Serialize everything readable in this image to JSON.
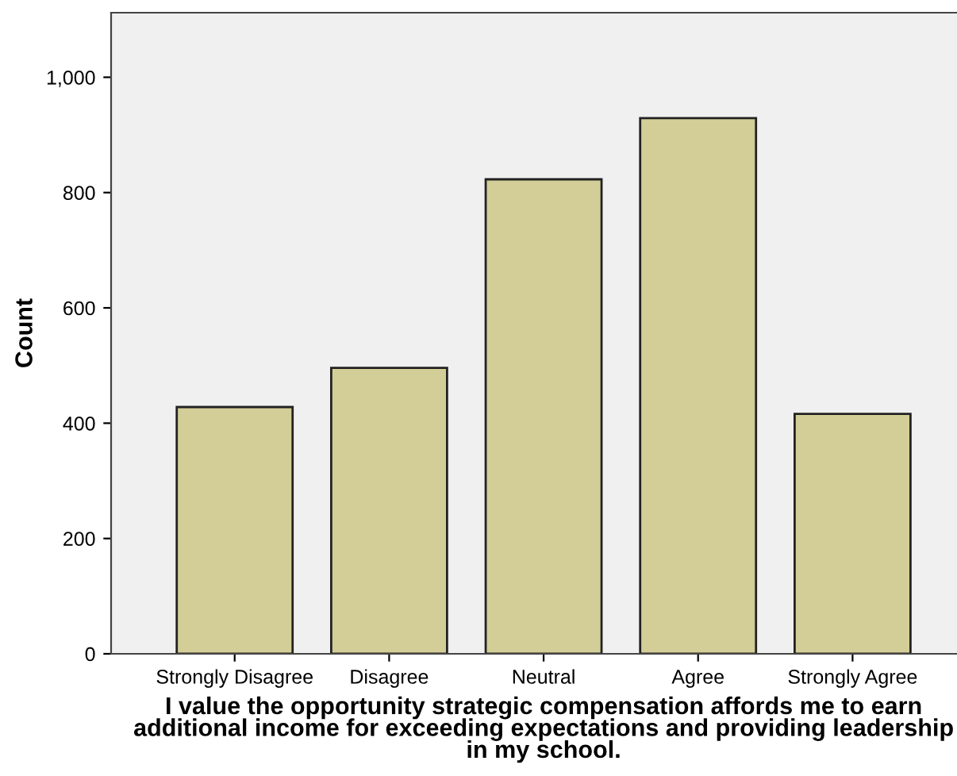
{
  "chart_data": {
    "type": "bar",
    "xlabel": "I value the opportunity strategic compensation affords me to earn additional income for exceeding expectations and providing leadership in my school.",
    "ylabel": "Count",
    "categories": [
      "Strongly Disagree",
      "Disagree",
      "Neutral",
      "Agree",
      "Strongly Agree"
    ],
    "values": [
      428,
      496,
      823,
      929,
      416
    ],
    "color": "#d3ce97",
    "ylim": [
      0,
      1112
    ],
    "yticks": [
      0,
      {
        "value": 200,
        "label": "200"
      },
      {
        "value": 400,
        "label": "400"
      },
      {
        "value": 600,
        "label": "600"
      },
      {
        "value": 800,
        "label": "800"
      },
      {
        "value": 1000,
        "label": "1,000"
      }
    ],
    "grid": false,
    "legend": false
  }
}
